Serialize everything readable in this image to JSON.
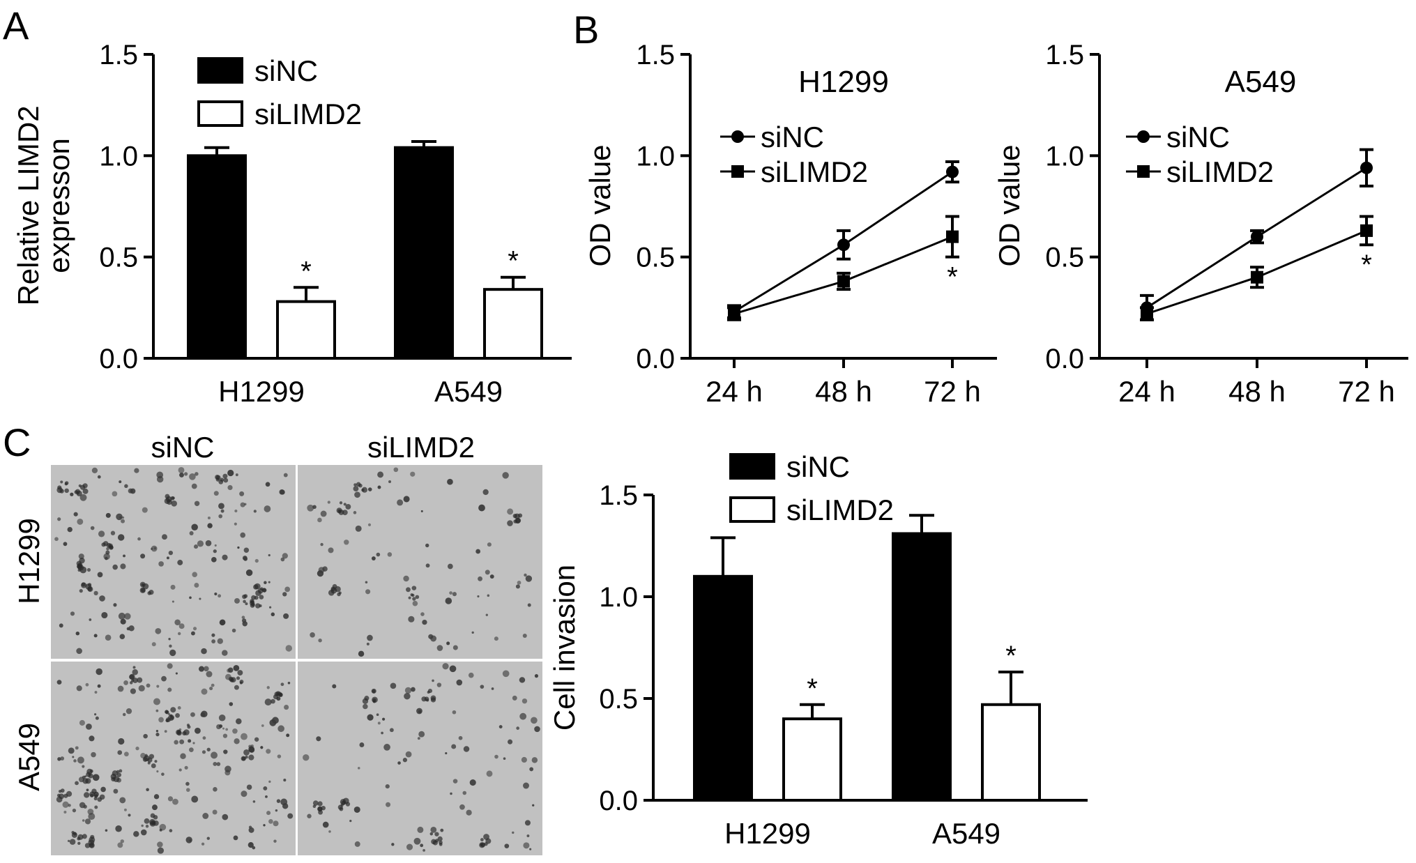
{
  "panels": {
    "A": {
      "letter": "A",
      "chart_data": {
        "type": "bar",
        "ylabel": [
          "Relative LIMD2",
          "expresson"
        ],
        "categories": [
          "H1299",
          "A549"
        ],
        "ylim": [
          0,
          1.5
        ],
        "yticks": [
          "0.0",
          "0.5",
          "1.0",
          "1.5"
        ],
        "legend": "top-left",
        "series": [
          {
            "name": "siNC",
            "fill": "#000000",
            "values": [
              1.0,
              1.04
            ],
            "errors": [
              0.04,
              0.03
            ],
            "sig": [
              "",
              ""
            ]
          },
          {
            "name": "siLIMD2",
            "fill": "#ffffff",
            "values": [
              0.28,
              0.34
            ],
            "errors": [
              0.07,
              0.06
            ],
            "sig": [
              "*",
              "*"
            ]
          }
        ]
      }
    },
    "B": {
      "letter": "B",
      "charts": [
        {
          "title": "H1299",
          "chart_data": {
            "type": "line",
            "ylabel": "OD value",
            "categories": [
              "24 h",
              "48 h",
              "72 h"
            ],
            "ylim": [
              0,
              1.5
            ],
            "yticks": [
              "0.0",
              "0.5",
              "1.0",
              "1.5"
            ],
            "legend": "top-left",
            "series": [
              {
                "name": "siNC",
                "marker": "circle",
                "values": [
                  0.23,
                  0.56,
                  0.92
                ],
                "errors": [
                  0.03,
                  0.07,
                  0.05
                ],
                "sig": [
                  "",
                  "",
                  ""
                ]
              },
              {
                "name": "siLIMD2",
                "marker": "square",
                "values": [
                  0.22,
                  0.38,
                  0.6
                ],
                "errors": [
                  0.03,
                  0.04,
                  0.1
                ],
                "sig": [
                  "",
                  "",
                  "*"
                ]
              }
            ]
          }
        },
        {
          "title": "A549",
          "chart_data": {
            "type": "line",
            "ylabel": "OD value",
            "categories": [
              "24 h",
              "48 h",
              "72 h"
            ],
            "ylim": [
              0,
              1.5
            ],
            "yticks": [
              "0.0",
              "0.5",
              "1.0",
              "1.5"
            ],
            "legend": "top-left",
            "series": [
              {
                "name": "siNC",
                "marker": "circle",
                "values": [
                  0.25,
                  0.6,
                  0.94
                ],
                "errors": [
                  0.06,
                  0.03,
                  0.09
                ],
                "sig": [
                  "",
                  "",
                  ""
                ]
              },
              {
                "name": "siLIMD2",
                "marker": "square",
                "values": [
                  0.22,
                  0.4,
                  0.63
                ],
                "errors": [
                  0.03,
                  0.05,
                  0.07
                ],
                "sig": [
                  "",
                  "",
                  "*"
                ]
              }
            ]
          }
        }
      ]
    },
    "C": {
      "letter": "C",
      "micrographs": {
        "col_labels": [
          "siNC",
          "siLIMD2"
        ],
        "row_labels": [
          "H1299",
          "A549"
        ],
        "density": [
          [
            150,
            70
          ],
          [
            190,
            85
          ]
        ]
      },
      "chart_data": {
        "type": "bar",
        "ylabel": "Cell invasion",
        "categories": [
          "H1299",
          "A549"
        ],
        "ylim": [
          0,
          1.5
        ],
        "yticks": [
          "0.0",
          "0.5",
          "1.0",
          "1.5"
        ],
        "legend": "top-left",
        "series": [
          {
            "name": "siNC",
            "fill": "#000000",
            "values": [
              1.1,
              1.31
            ],
            "errors": [
              0.19,
              0.09
            ],
            "sig": [
              "",
              ""
            ]
          },
          {
            "name": "siLIMD2",
            "fill": "#ffffff",
            "values": [
              0.4,
              0.47
            ],
            "errors": [
              0.07,
              0.16
            ],
            "sig": [
              "*",
              "*"
            ]
          }
        ]
      }
    }
  }
}
